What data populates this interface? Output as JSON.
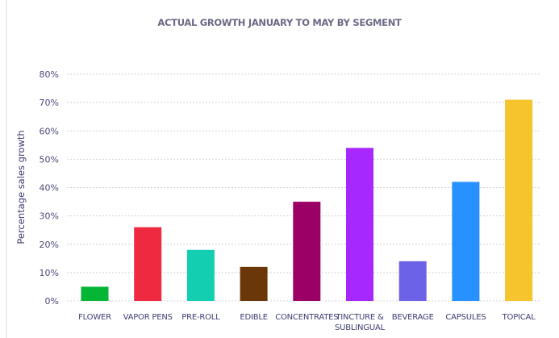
{
  "chart_data": {
    "type": "bar",
    "title": "ACTUAL GROWTH JANUARY TO MAY BY SEGMENT",
    "xlabel": "",
    "ylabel": "Percentage sales growth",
    "ylim": [
      0,
      80
    ],
    "yticks": [
      0,
      10,
      20,
      30,
      40,
      50,
      60,
      70,
      80
    ],
    "ytick_labels": [
      "0%",
      "10%",
      "20%",
      "30%",
      "40%",
      "50%",
      "60%",
      "70%",
      "80%"
    ],
    "grid": true,
    "grid_style": "dotted",
    "legend": "none",
    "categories": [
      [
        "FLOWER"
      ],
      [
        "VAPOR PENS"
      ],
      [
        "PRE-ROLL"
      ],
      [
        "EDIBLE"
      ],
      [
        "CONCENTRATES"
      ],
      [
        "TINCTURE &",
        "SUBLINGUAL"
      ],
      [
        "BEVERAGE"
      ],
      [
        "CAPSULES"
      ],
      [
        "TOPICAL"
      ]
    ],
    "values": [
      5,
      26,
      18,
      12,
      35,
      54,
      14,
      42,
      71
    ],
    "colors": [
      "#05b536",
      "#ef2a40",
      "#13ceb0",
      "#6b3708",
      "#9b0066",
      "#a628ff",
      "#6b62e8",
      "#2691ff",
      "#f6c42c"
    ]
  },
  "colors": {
    "title": "#6b6a85",
    "axis_text": "#3d3d72",
    "grid": "#d4d4dc"
  }
}
